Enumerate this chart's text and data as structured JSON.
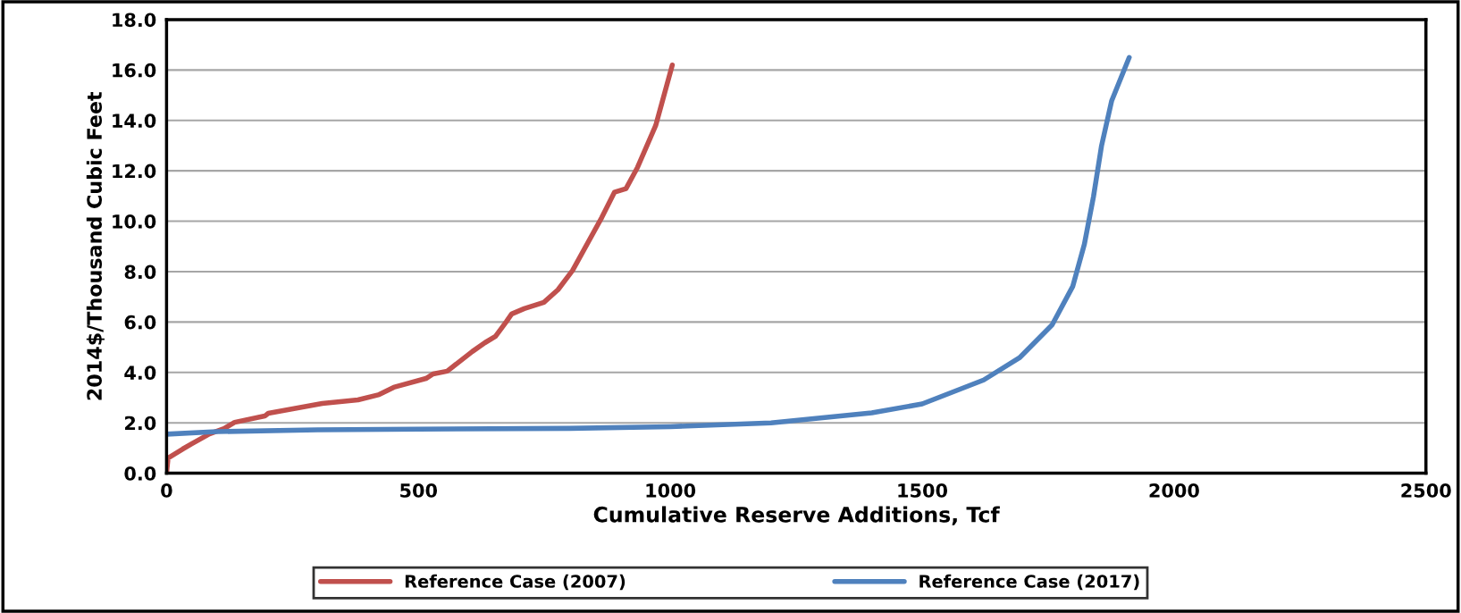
{
  "chart_data": {
    "type": "line",
    "xlabel": "Cumulative Reserve Additions, Tcf",
    "ylabel": "2014$/Thousand Cubic Feet",
    "xlim": [
      0,
      2500
    ],
    "xticks": [
      0,
      500,
      1000,
      1500,
      2000,
      2500
    ],
    "ylim": [
      0,
      18
    ],
    "yticks": [
      {
        "value": 0,
        "label": "0.0"
      },
      {
        "value": 2,
        "label": "2.0"
      },
      {
        "value": 4,
        "label": "4.0"
      },
      {
        "value": 6,
        "label": "6.0"
      },
      {
        "value": 8,
        "label": "8.0"
      },
      {
        "value": 10,
        "label": "10.0"
      },
      {
        "value": 12,
        "label": "12.0"
      },
      {
        "value": 14,
        "label": "14.0"
      },
      {
        "value": 16,
        "label": "16.0"
      },
      {
        "value": 18,
        "label": "18.0"
      }
    ],
    "grid": "y",
    "legend": "bottom",
    "marker": "none",
    "line_style": "solid",
    "series": [
      {
        "name": "Reference Case (2007)",
        "color": "#c0504d",
        "x": [
          0,
          3,
          32,
          50,
          85,
          114,
          135,
          195,
          202,
          309,
          380,
          422,
          451,
          515,
          529,
          557,
          607,
          632,
          653,
          674,
          685,
          710,
          749,
          777,
          806,
          864,
          889,
          912,
          935,
          971,
          1004
        ],
        "values": [
          0.0,
          0.6,
          0.96,
          1.17,
          1.56,
          1.77,
          2.02,
          2.27,
          2.38,
          2.77,
          2.91,
          3.12,
          3.41,
          3.76,
          3.94,
          4.05,
          4.83,
          5.18,
          5.43,
          6.0,
          6.32,
          6.53,
          6.78,
          7.28,
          8.05,
          10.15,
          11.15,
          11.29,
          12.14,
          13.8,
          16.2
        ]
      },
      {
        "name": "Reference Case (2017)",
        "color": "#4f81bd",
        "x": [
          0,
          100,
          300,
          500,
          800,
          1000,
          1200,
          1400,
          1500,
          1622,
          1693,
          1758,
          1799,
          1822,
          1840,
          1856,
          1876,
          1911
        ],
        "values": [
          1.55,
          1.65,
          1.72,
          1.75,
          1.78,
          1.85,
          2.0,
          2.4,
          2.75,
          3.7,
          4.58,
          5.89,
          7.42,
          9.09,
          10.97,
          12.99,
          14.77,
          16.5
        ]
      }
    ]
  }
}
